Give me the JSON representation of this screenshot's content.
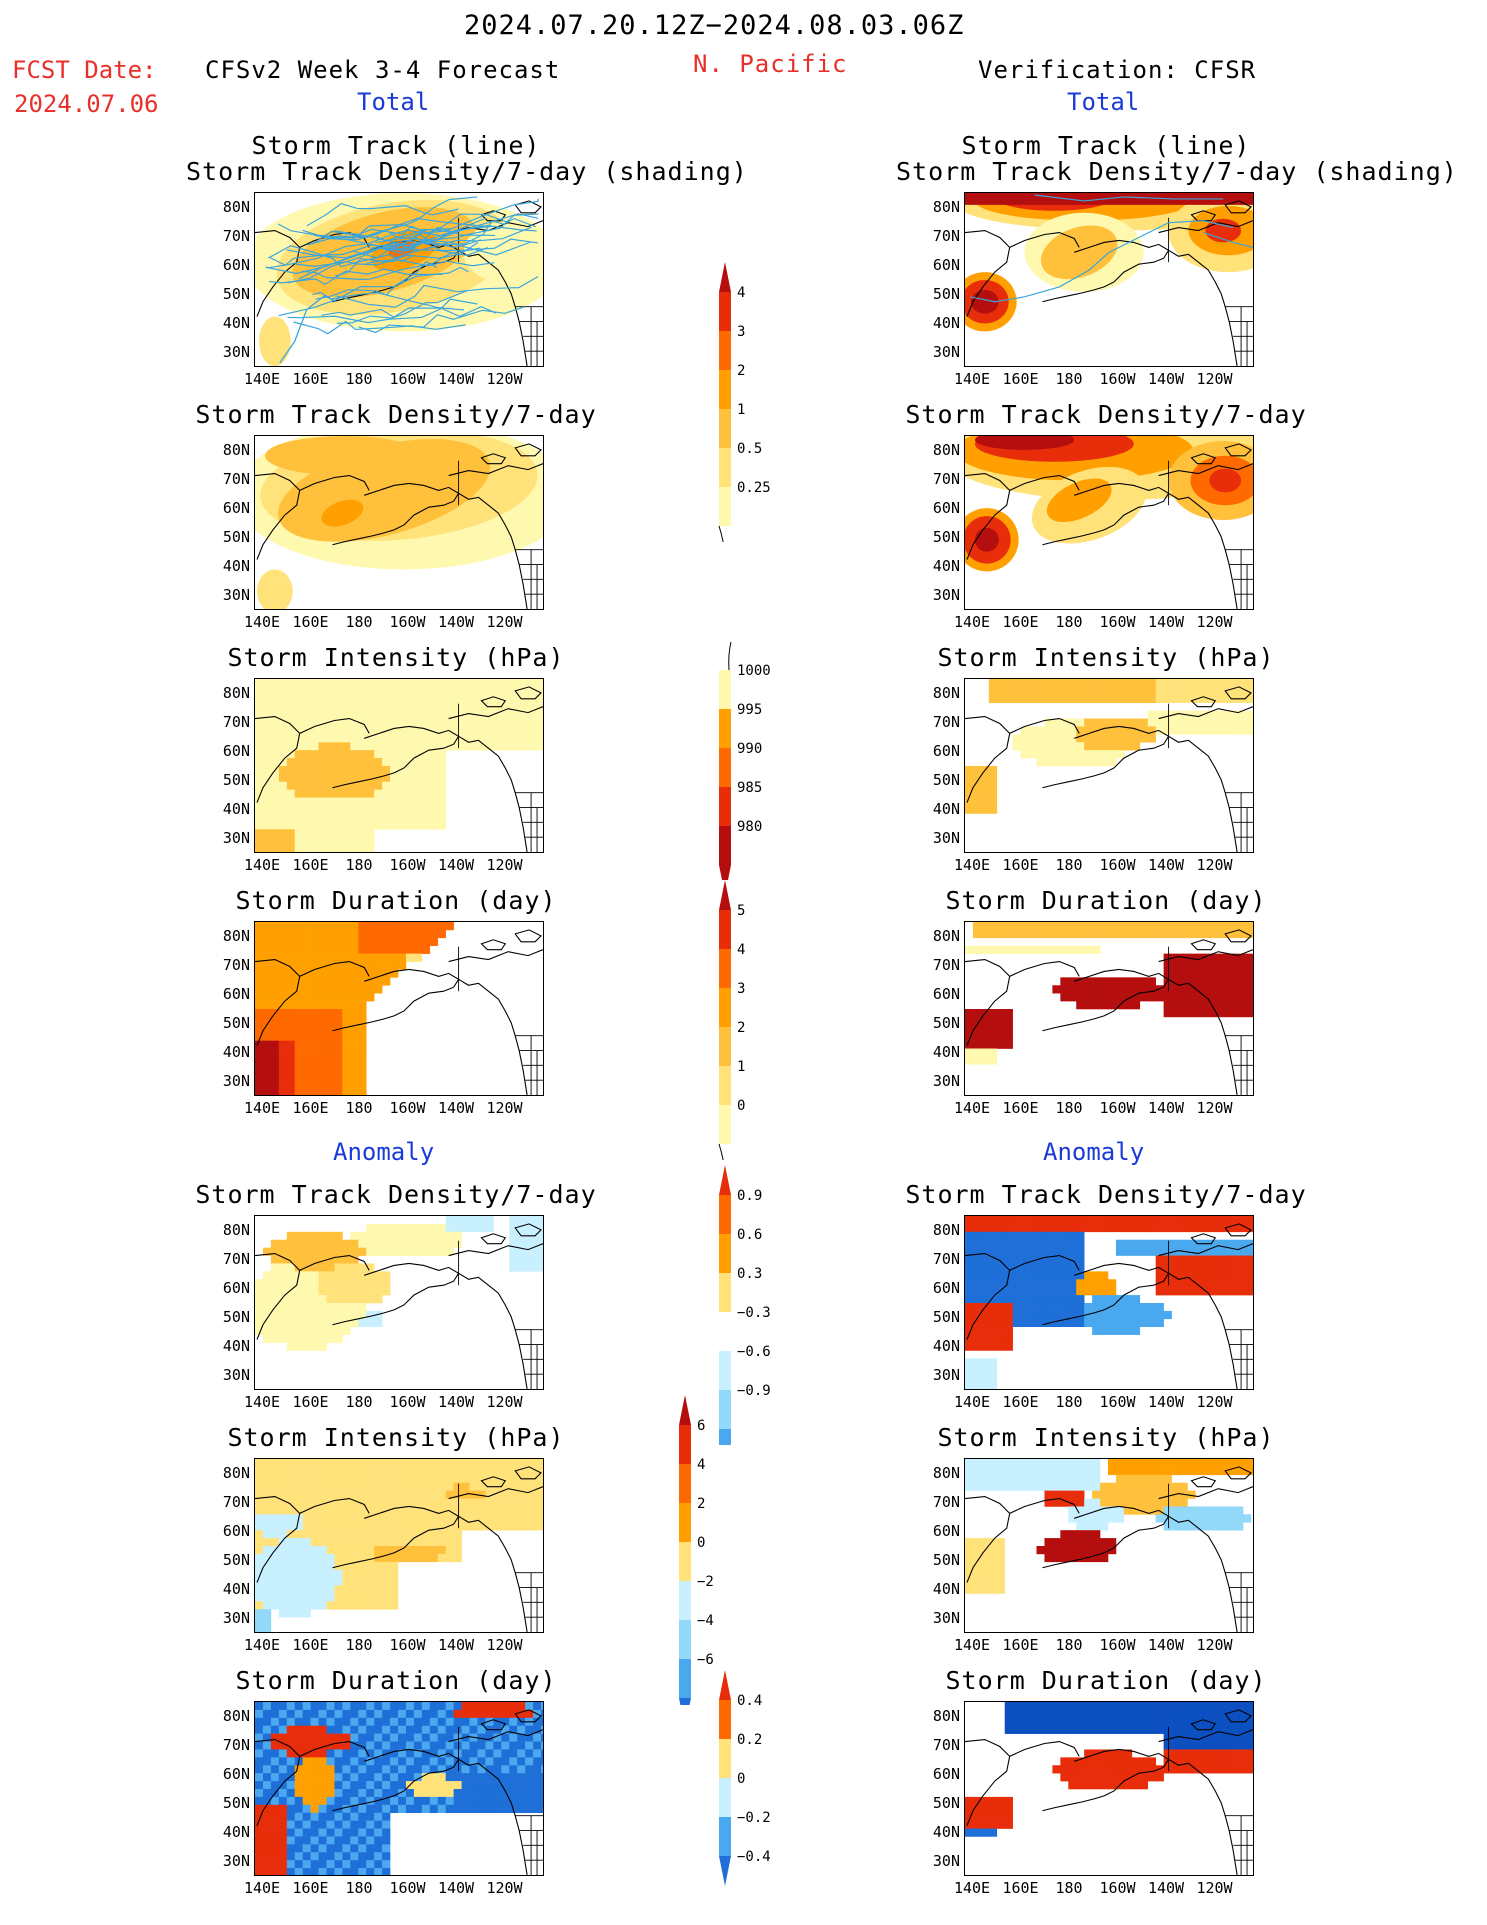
{
  "header": {
    "period": "2024.07.20.12Z−2024.08.03.06Z",
    "fcst_label": "FCST Date:",
    "fcst_date": "2024.07.06",
    "model": "CFSv2 Week 3-4 Forecast",
    "region": "N. Pacific",
    "verification": "Verification: CFSR"
  },
  "sections": {
    "total": "Total",
    "anomaly": "Anomaly"
  },
  "axes": {
    "lat_labels": [
      "80N",
      "70N",
      "60N",
      "50N",
      "40N",
      "30N"
    ],
    "lon_labels": [
      "140E",
      "160E",
      "180",
      "160W",
      "140W",
      "120W"
    ]
  },
  "panels": {
    "storm_track_line": "Storm Track (line)",
    "storm_track_shading": "Storm Track Density/7-day (shading)",
    "density": "Storm Track Density/7-day",
    "intensity": "Storm Intensity (hPa)",
    "duration": "Storm Duration (day)"
  },
  "colorbars": {
    "density_total": [
      "4",
      "3",
      "2",
      "1",
      "0.5",
      "0.25"
    ],
    "intensity_total": [
      "1000",
      "995",
      "990",
      "985",
      "980"
    ],
    "duration_total": [
      "5",
      "4",
      "3",
      "2",
      "1",
      "0"
    ],
    "density_anom": [
      "0.9",
      "0.6",
      "0.3",
      "−0.3",
      "−0.6",
      "−0.9"
    ],
    "intensity_anom": [
      "6",
      "4",
      "2",
      "0",
      "−2",
      "−4",
      "−6"
    ],
    "duration_anom": [
      "0.4",
      "0.2",
      "0",
      "−0.2",
      "−0.4"
    ]
  },
  "colors": {
    "red_text": "#e8302a",
    "blue_text": "#1a3ad8",
    "warm": [
      "#fff9b0",
      "#ffe27a",
      "#ffc03c",
      "#ffa000",
      "#ff6a00",
      "#e82d0a",
      "#b50e0e"
    ],
    "cool": [
      "#c8f0ff",
      "#92d8f8",
      "#4aa8ee",
      "#1f6fd8",
      "#0b4fc0"
    ],
    "track_line": "#3aa6dc"
  }
}
